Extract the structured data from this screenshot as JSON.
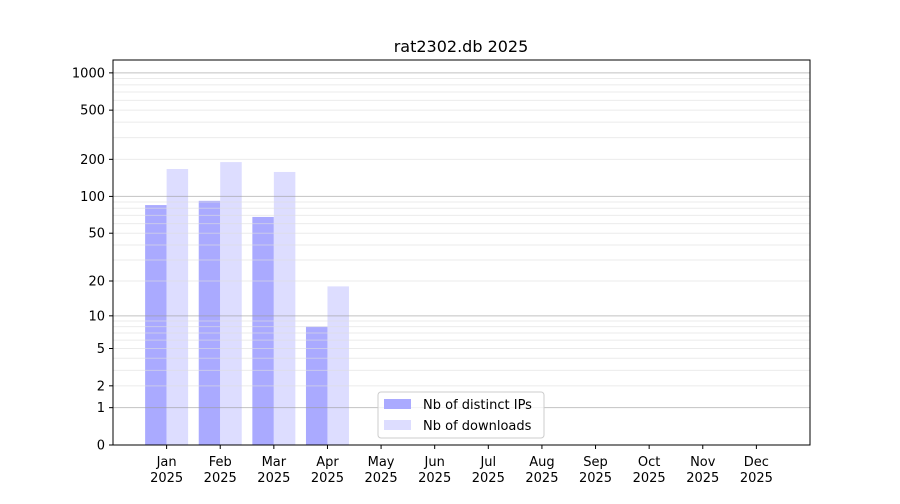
{
  "chart_data": {
    "type": "bar",
    "title": "rat2302.db 2025",
    "xlabel": "",
    "ylabel": "",
    "y_scale": "log10(1+y)",
    "ylim": [
      0,
      1270
    ],
    "yticks": [
      0,
      1,
      2,
      5,
      10,
      20,
      50,
      100,
      200,
      500,
      1000
    ],
    "grid": true,
    "legend_position": "bottom-center",
    "categories": [
      "Jan\n2025",
      "Feb\n2025",
      "Mar\n2025",
      "Apr\n2025",
      "May\n2025",
      "Jun\n2025",
      "Jul\n2025",
      "Aug\n2025",
      "Sep\n2025",
      "Oct\n2025",
      "Nov\n2025",
      "Dec\n2025"
    ],
    "series": [
      {
        "name": "Nb of distinct IPs",
        "color": "#aaaaff",
        "values": [
          85,
          92,
          68,
          8,
          0,
          0,
          0,
          0,
          0,
          0,
          0,
          0
        ]
      },
      {
        "name": "Nb of downloads",
        "color": "#ddddff",
        "values": [
          167,
          190,
          158,
          18,
          0,
          0,
          0,
          0,
          0,
          0,
          0,
          0
        ]
      }
    ]
  }
}
